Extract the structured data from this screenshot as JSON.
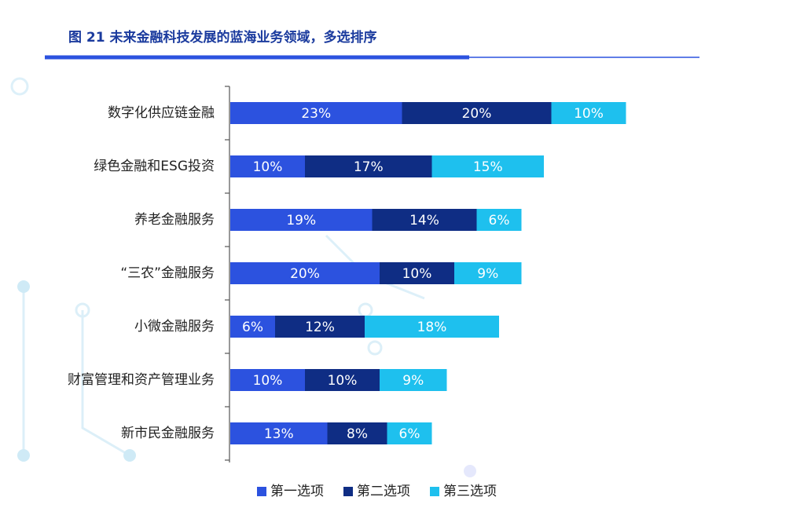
{
  "chart_data": {
    "type": "stacked-bar-horizontal",
    "title": "图 21 未来金融科技发展的蓝海业务领域，多选排序",
    "categories": [
      "数字化供应链金融",
      "绿色金融和ESG投资",
      "养老金融服务",
      "“三农”金融服务",
      "小微金融服务",
      "财富管理和资产管理业务",
      "新市民金融服务"
    ],
    "series": [
      {
        "name": "第一选项",
        "color": "#2c52df",
        "values": [
          23,
          10,
          19,
          20,
          6,
          10,
          13
        ],
        "value_labels": [
          "23%",
          "10%",
          "19%",
          "20%",
          "6%",
          "10%",
          "13%"
        ]
      },
      {
        "name": "第二选项",
        "color": "#0f2d84",
        "values": [
          20,
          17,
          14,
          10,
          12,
          10,
          8
        ],
        "value_labels": [
          "20%",
          "17%",
          "14%",
          "10%",
          "12%",
          "10%",
          "8%"
        ]
      },
      {
        "name": "第三选项",
        "color": "#1ec0ee",
        "values": [
          10,
          15,
          6,
          9,
          18,
          9,
          6
        ],
        "value_labels": [
          "10%",
          "15%",
          "6%",
          "9%",
          "18%",
          "9%",
          "6%"
        ]
      }
    ],
    "legend": "bottom"
  }
}
